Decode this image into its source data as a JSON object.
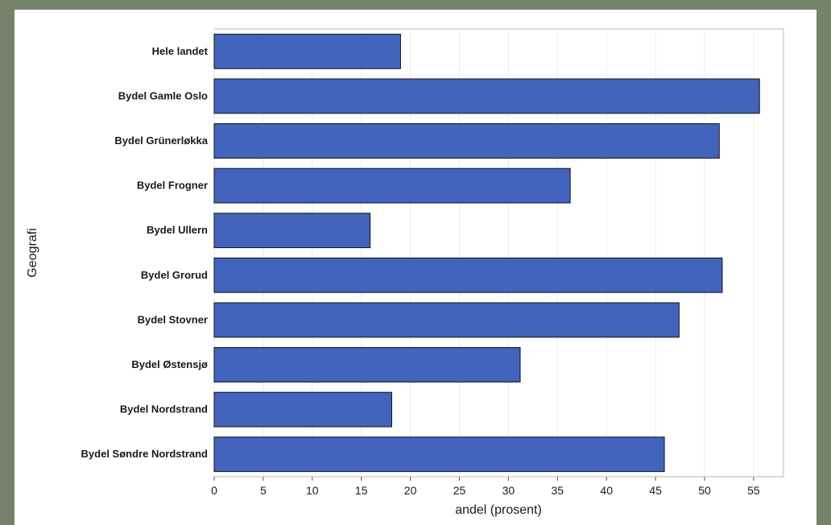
{
  "chart_data": {
    "type": "bar",
    "orientation": "horizontal",
    "categories": [
      "Hele landet",
      "Bydel Gamle Oslo",
      "Bydel Grünerløkka",
      "Bydel Frogner",
      "Bydel Ullern",
      "Bydel Grorud",
      "Bydel Stovner",
      "Bydel Østensjø",
      "Bydel Nordstrand",
      "Bydel Søndre Nordstrand"
    ],
    "values": [
      19,
      55.6,
      51.5,
      36.3,
      15.9,
      51.8,
      47.4,
      31.2,
      18.1,
      45.9
    ],
    "xlabel": "andel (prosent)",
    "ylabel": "Geografi",
    "xlim": [
      0,
      58
    ],
    "xticks": [
      0,
      5,
      10,
      15,
      20,
      25,
      30,
      35,
      40,
      45,
      50,
      55
    ],
    "grid": "vertical",
    "bar_color": "#4264bd",
    "bar_edge_color": "#111111"
  }
}
